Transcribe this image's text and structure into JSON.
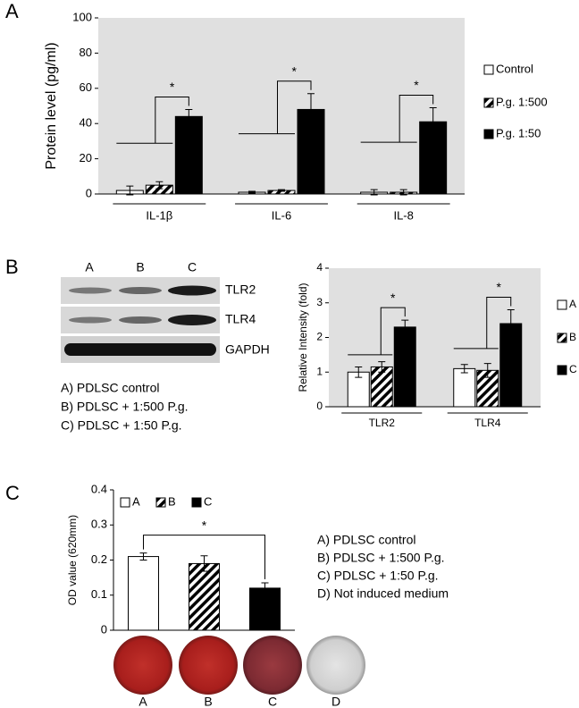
{
  "chart_data": [
    {
      "type": "bar",
      "y_label": "Protein level (pg/ml)",
      "categories": [
        "IL-1β",
        "IL-6",
        "IL-8"
      ],
      "series": [
        {
          "name": "Control",
          "color": "#ffffff",
          "values": [
            2,
            1,
            1
          ],
          "errors": [
            2.5,
            0.5,
            1.5
          ]
        },
        {
          "name": "P.g. 1:500",
          "color": "#ffffff",
          "hatch": true,
          "values": [
            5,
            2,
            1
          ],
          "errors": [
            2,
            0.5,
            1.5
          ]
        },
        {
          "name": "P.g. 1:50",
          "color": "#000000",
          "values": [
            44,
            48,
            41
          ],
          "errors": [
            4,
            9,
            8
          ]
        }
      ],
      "annotations": [
        "*",
        "*",
        "*"
      ],
      "ylim": [
        0,
        100
      ],
      "yticks": [
        0,
        20,
        40,
        60,
        80,
        100
      ],
      "legend": "right"
    },
    {
      "type": "bar",
      "y_label": "Relative Intensity (fold)",
      "categories": [
        "TLR2",
        "TLR4"
      ],
      "series": [
        {
          "name": "A",
          "color": "#ffffff",
          "values": [
            1.0,
            1.1
          ],
          "errors": [
            0.15,
            0.12
          ]
        },
        {
          "name": "B",
          "color": "#ffffff",
          "hatch": true,
          "values": [
            1.15,
            1.05
          ],
          "errors": [
            0.15,
            0.2
          ]
        },
        {
          "name": "C",
          "color": "#000000",
          "values": [
            2.3,
            2.4
          ],
          "errors": [
            0.2,
            0.4
          ]
        }
      ],
      "annotations": [
        "*",
        "*"
      ],
      "ylim": [
        0,
        4
      ],
      "yticks": [
        0,
        1,
        2,
        3,
        4
      ],
      "legend": "right"
    },
    {
      "type": "bar",
      "y_label": "OD value (620mm)",
      "categories": [
        null
      ],
      "series": [
        {
          "name": "A",
          "color": "#ffffff",
          "values": [
            0.21
          ],
          "errors": [
            0.01
          ]
        },
        {
          "name": "B",
          "color": "#ffffff",
          "hatch": true,
          "values": [
            0.19
          ],
          "errors": [
            0.022
          ]
        },
        {
          "name": "C",
          "color": "#000000",
          "values": [
            0.12
          ],
          "errors": [
            0.015
          ]
        }
      ],
      "annotations": [
        "*"
      ],
      "ylim": [
        0,
        0.4
      ],
      "yticks": [
        0,
        0.1,
        0.2,
        0.3,
        0.4
      ],
      "legend": "top"
    }
  ],
  "panel_labels": [
    "A",
    "B",
    "C"
  ],
  "blot": {
    "lanes": [
      "A",
      "B",
      "C"
    ],
    "bands": [
      "TLR2",
      "TLR4",
      "GAPDH"
    ]
  },
  "legend_b": [
    "A) PDLSC control",
    "B) PDLSC + 1:500 P.g.",
    "C) PDLSC + 1:50 P.g."
  ],
  "legend_c": [
    "A) PDLSC control",
    "B) PDLSC + 1:500 P.g.",
    "C) PDLSC + 1:50 P.g.",
    "D) Not induced medium"
  ],
  "dish_labels": [
    "A",
    "B",
    "C",
    "D"
  ]
}
